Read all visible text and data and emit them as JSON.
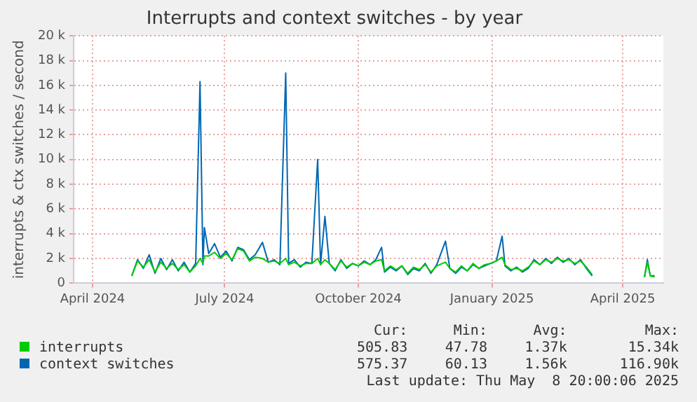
{
  "chart_data": {
    "type": "line",
    "title": "Interrupts and context switches - by year",
    "ylabel": "interrupts & ctx switches / second",
    "x": [
      "2024-04-28",
      "2024-05-02",
      "2024-05-06",
      "2024-05-10",
      "2024-05-14",
      "2024-05-18",
      "2024-05-22",
      "2024-05-26",
      "2024-05-30",
      "2024-06-03",
      "2024-06-07",
      "2024-06-11",
      "2024-06-14",
      "2024-06-16",
      "2024-06-17",
      "2024-06-20",
      "2024-06-24",
      "2024-06-28",
      "2024-07-02",
      "2024-07-06",
      "2024-07-10",
      "2024-07-14",
      "2024-07-18",
      "2024-07-22",
      "2024-07-27",
      "2024-07-31",
      "2024-08-04",
      "2024-08-08",
      "2024-08-12",
      "2024-08-14",
      "2024-08-18",
      "2024-08-22",
      "2024-08-26",
      "2024-08-30",
      "2024-09-03",
      "2024-09-05",
      "2024-09-08",
      "2024-09-11",
      "2024-09-15",
      "2024-09-19",
      "2024-09-23",
      "2024-09-27",
      "2024-10-01",
      "2024-10-05",
      "2024-10-09",
      "2024-10-13",
      "2024-10-17",
      "2024-10-19",
      "2024-10-23",
      "2024-10-27",
      "2024-10-31",
      "2024-11-04",
      "2024-11-08",
      "2024-11-12",
      "2024-11-16",
      "2024-11-20",
      "2024-11-24",
      "2024-11-30",
      "2024-12-03",
      "2024-12-07",
      "2024-12-11",
      "2024-12-15",
      "2024-12-19",
      "2024-12-23",
      "2024-12-27",
      "2024-12-31",
      "2025-01-04",
      "2025-01-08",
      "2025-01-10",
      "2025-01-14",
      "2025-01-18",
      "2025-01-22",
      "2025-01-26",
      "2025-01-30",
      "2025-02-03",
      "2025-02-07",
      "2025-02-11",
      "2025-02-15",
      "2025-02-19",
      "2025-02-23",
      "2025-02-27",
      "2025-03-03",
      "2025-03-07",
      "2025-03-11",
      "2025-03-12",
      "2025-04-16",
      "2025-04-18",
      "2025-04-20",
      "2025-04-23"
    ],
    "series": [
      {
        "name": "interrupts",
        "color": "#00cc00",
        "values": [
          600,
          1800,
          1300,
          1900,
          900,
          1700,
          1200,
          1600,
          1100,
          1500,
          900,
          1400,
          2000,
          1600,
          2200,
          2200,
          2500,
          2000,
          2400,
          1900,
          2800,
          2600,
          1800,
          2100,
          2000,
          1700,
          1800,
          1600,
          2000,
          1500,
          1700,
          1400,
          1600,
          1600,
          2000,
          1500,
          1900,
          1600,
          1100,
          1800,
          1300,
          1600,
          1400,
          1700,
          1500,
          1800,
          1900,
          1000,
          1400,
          1100,
          1400,
          800,
          1300,
          1100,
          1500,
          900,
          1400,
          1700,
          1200,
          900,
          1400,
          1000,
          1600,
          1200,
          1500,
          1600,
          1800,
          2100,
          1500,
          1100,
          1200,
          1000,
          1300,
          1800,
          1500,
          1900,
          1700,
          2000,
          1800,
          1900,
          1600,
          1800,
          1300,
          700,
          null,
          500,
          1700,
          600,
          500
        ]
      },
      {
        "name": "context switches",
        "color": "#0066b3",
        "values": [
          600,
          1900,
          1200,
          2300,
          800,
          2000,
          1100,
          1900,
          1000,
          1700,
          900,
          1600,
          16300,
          1500,
          4500,
          2400,
          3200,
          2100,
          2600,
          1800,
          2900,
          2700,
          1900,
          2300,
          3300,
          1700,
          1900,
          1500,
          17000,
          1600,
          1900,
          1300,
          1700,
          1600,
          10000,
          1500,
          5400,
          1600,
          1000,
          1900,
          1200,
          1600,
          1400,
          1800,
          1500,
          1900,
          2900,
          900,
          1300,
          1000,
          1400,
          700,
          1200,
          1000,
          1600,
          800,
          1500,
          3400,
          1200,
          800,
          1300,
          1000,
          1500,
          1200,
          1400,
          1600,
          1800,
          3800,
          1400,
          1000,
          1300,
          900,
          1200,
          1900,
          1500,
          2000,
          1600,
          2100,
          1700,
          2000,
          1500,
          1900,
          1200,
          600,
          null,
          500,
          1900,
          600,
          600
        ]
      }
    ],
    "xlim": [
      "2024-03-19",
      "2025-04-29"
    ],
    "xticks": [
      {
        "value": "2024-04-01",
        "label": "April 2024"
      },
      {
        "value": "2024-07-01",
        "label": "July 2024"
      },
      {
        "value": "2024-10-01",
        "label": "October 2024"
      },
      {
        "value": "2025-01-01",
        "label": "January 2025"
      },
      {
        "value": "2025-04-01",
        "label": "April 2025"
      }
    ],
    "ylim": [
      0,
      20000
    ],
    "yticks": [
      0,
      {
        "value": 2000,
        "label": "2 k"
      },
      {
        "value": 4000,
        "label": "4 k"
      },
      {
        "value": 6000,
        "label": "6 k"
      },
      {
        "value": 8000,
        "label": "8 k"
      },
      {
        "value": 10000,
        "label": "10 k"
      },
      {
        "value": 12000,
        "label": "12 k"
      },
      {
        "value": 14000,
        "label": "14 k"
      },
      {
        "value": 16000,
        "label": "16 k"
      },
      {
        "value": 18000,
        "label": "18 k"
      },
      {
        "value": 20000,
        "label": "20 k"
      }
    ],
    "grid": true,
    "legend": "bottom",
    "marker": "none",
    "line_style": "solid",
    "annotations": [
      "Cur:",
      "Min:",
      "Avg:",
      "Max:",
      "505.83",
      "47.78",
      "1.37k",
      "15.34k",
      "575.37",
      "60.13",
      "1.56k",
      "116.90k",
      "Last update: Thu May  8 20:00:06 2025"
    ]
  }
}
